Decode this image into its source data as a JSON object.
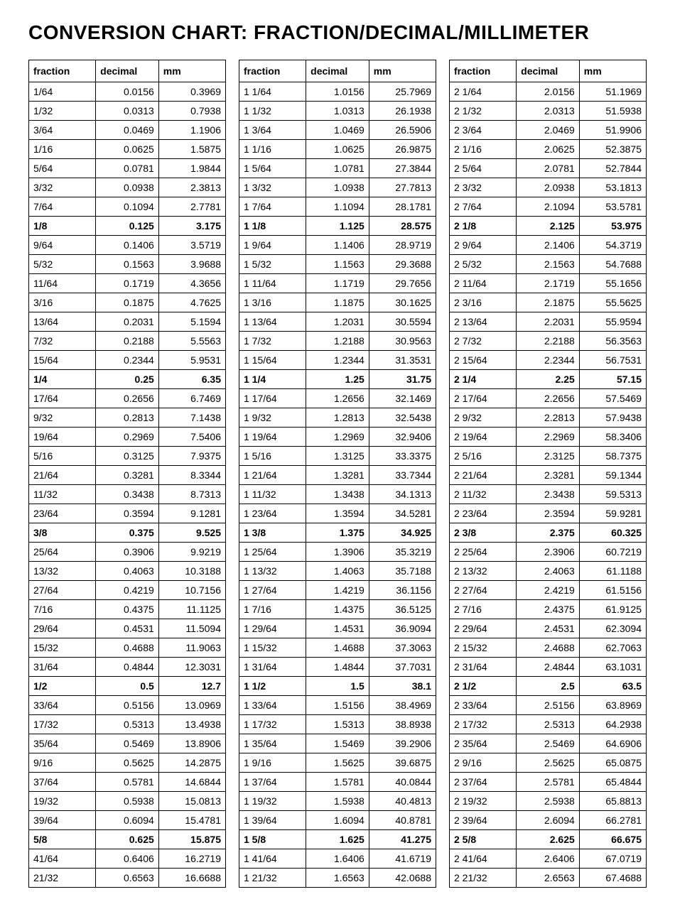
{
  "title": "CONVERSION CHART: FRACTION/DECIMAL/MILLIMETER",
  "headers": {
    "fraction": "fraction",
    "decimal": "decimal",
    "mm": "mm"
  },
  "bold_every": 8,
  "blocks": [
    {
      "rows": [
        {
          "f": "1/64",
          "d": "0.0156",
          "m": "0.3969"
        },
        {
          "f": "1/32",
          "d": "0.0313",
          "m": "0.7938"
        },
        {
          "f": "3/64",
          "d": "0.0469",
          "m": "1.1906"
        },
        {
          "f": "1/16",
          "d": "0.0625",
          "m": "1.5875"
        },
        {
          "f": "5/64",
          "d": "0.0781",
          "m": "1.9844"
        },
        {
          "f": "3/32",
          "d": "0.0938",
          "m": "2.3813"
        },
        {
          "f": "7/64",
          "d": "0.1094",
          "m": "2.7781"
        },
        {
          "f": "1/8",
          "d": "0.125",
          "m": "3.175"
        },
        {
          "f": "9/64",
          "d": "0.1406",
          "m": "3.5719"
        },
        {
          "f": "5/32",
          "d": "0.1563",
          "m": "3.9688"
        },
        {
          "f": "11/64",
          "d": "0.1719",
          "m": "4.3656"
        },
        {
          "f": "3/16",
          "d": "0.1875",
          "m": "4.7625"
        },
        {
          "f": "13/64",
          "d": "0.2031",
          "m": "5.1594"
        },
        {
          "f": "7/32",
          "d": "0.2188",
          "m": "5.5563"
        },
        {
          "f": "15/64",
          "d": "0.2344",
          "m": "5.9531"
        },
        {
          "f": "1/4",
          "d": "0.25",
          "m": "6.35"
        },
        {
          "f": "17/64",
          "d": "0.2656",
          "m": "6.7469"
        },
        {
          "f": "9/32",
          "d": "0.2813",
          "m": "7.1438"
        },
        {
          "f": "19/64",
          "d": "0.2969",
          "m": "7.5406"
        },
        {
          "f": "5/16",
          "d": "0.3125",
          "m": "7.9375"
        },
        {
          "f": "21/64",
          "d": "0.3281",
          "m": "8.3344"
        },
        {
          "f": "11/32",
          "d": "0.3438",
          "m": "8.7313"
        },
        {
          "f": "23/64",
          "d": "0.3594",
          "m": "9.1281"
        },
        {
          "f": "3/8",
          "d": "0.375",
          "m": "9.525"
        },
        {
          "f": "25/64",
          "d": "0.3906",
          "m": "9.9219"
        },
        {
          "f": "13/32",
          "d": "0.4063",
          "m": "10.3188"
        },
        {
          "f": "27/64",
          "d": "0.4219",
          "m": "10.7156"
        },
        {
          "f": "7/16",
          "d": "0.4375",
          "m": "11.1125"
        },
        {
          "f": "29/64",
          "d": "0.4531",
          "m": "11.5094"
        },
        {
          "f": "15/32",
          "d": "0.4688",
          "m": "11.9063"
        },
        {
          "f": "31/64",
          "d": "0.4844",
          "m": "12.3031"
        },
        {
          "f": "1/2",
          "d": "0.5",
          "m": "12.7"
        },
        {
          "f": "33/64",
          "d": "0.5156",
          "m": "13.0969"
        },
        {
          "f": "17/32",
          "d": "0.5313",
          "m": "13.4938"
        },
        {
          "f": "35/64",
          "d": "0.5469",
          "m": "13.8906"
        },
        {
          "f": "9/16",
          "d": "0.5625",
          "m": "14.2875"
        },
        {
          "f": "37/64",
          "d": "0.5781",
          "m": "14.6844"
        },
        {
          "f": "19/32",
          "d": "0.5938",
          "m": "15.0813"
        },
        {
          "f": "39/64",
          "d": "0.6094",
          "m": "15.4781"
        },
        {
          "f": "5/8",
          "d": "0.625",
          "m": "15.875"
        },
        {
          "f": "41/64",
          "d": "0.6406",
          "m": "16.2719"
        },
        {
          "f": "21/32",
          "d": "0.6563",
          "m": "16.6688"
        }
      ]
    },
    {
      "rows": [
        {
          "f": "1  1/64",
          "d": "1.0156",
          "m": "25.7969"
        },
        {
          "f": "1  1/32",
          "d": "1.0313",
          "m": "26.1938"
        },
        {
          "f": "1  3/64",
          "d": "1.0469",
          "m": "26.5906"
        },
        {
          "f": "1  1/16",
          "d": "1.0625",
          "m": "26.9875"
        },
        {
          "f": "1  5/64",
          "d": "1.0781",
          "m": "27.3844"
        },
        {
          "f": "1  3/32",
          "d": "1.0938",
          "m": "27.7813"
        },
        {
          "f": "1  7/64",
          "d": "1.1094",
          "m": "28.1781"
        },
        {
          "f": "1 1/8",
          "d": "1.125",
          "m": "28.575"
        },
        {
          "f": "1  9/64",
          "d": "1.1406",
          "m": "28.9719"
        },
        {
          "f": "1  5/32",
          "d": "1.1563",
          "m": "29.3688"
        },
        {
          "f": "1 11/64",
          "d": "1.1719",
          "m": "29.7656"
        },
        {
          "f": "1  3/16",
          "d": "1.1875",
          "m": "30.1625"
        },
        {
          "f": "1 13/64",
          "d": "1.2031",
          "m": "30.5594"
        },
        {
          "f": "1  7/32",
          "d": "1.2188",
          "m": "30.9563"
        },
        {
          "f": "1 15/64",
          "d": "1.2344",
          "m": "31.3531"
        },
        {
          "f": "1 1/4",
          "d": "1.25",
          "m": "31.75"
        },
        {
          "f": "1 17/64",
          "d": "1.2656",
          "m": "32.1469"
        },
        {
          "f": "1  9/32",
          "d": "1.2813",
          "m": "32.5438"
        },
        {
          "f": "1 19/64",
          "d": "1.2969",
          "m": "32.9406"
        },
        {
          "f": "1  5/16",
          "d": "1.3125",
          "m": "33.3375"
        },
        {
          "f": "1 21/64",
          "d": "1.3281",
          "m": "33.7344"
        },
        {
          "f": "1 11/32",
          "d": "1.3438",
          "m": "34.1313"
        },
        {
          "f": "1 23/64",
          "d": "1.3594",
          "m": "34.5281"
        },
        {
          "f": "1 3/8",
          "d": "1.375",
          "m": "34.925"
        },
        {
          "f": "1 25/64",
          "d": "1.3906",
          "m": "35.3219"
        },
        {
          "f": "1 13/32",
          "d": "1.4063",
          "m": "35.7188"
        },
        {
          "f": "1 27/64",
          "d": "1.4219",
          "m": "36.1156"
        },
        {
          "f": "1  7/16",
          "d": "1.4375",
          "m": "36.5125"
        },
        {
          "f": "1 29/64",
          "d": "1.4531",
          "m": "36.9094"
        },
        {
          "f": "1 15/32",
          "d": "1.4688",
          "m": "37.3063"
        },
        {
          "f": "1 31/64",
          "d": "1.4844",
          "m": "37.7031"
        },
        {
          "f": "1 1/2",
          "d": "1.5",
          "m": "38.1"
        },
        {
          "f": "1 33/64",
          "d": "1.5156",
          "m": "38.4969"
        },
        {
          "f": "1 17/32",
          "d": "1.5313",
          "m": "38.8938"
        },
        {
          "f": "1 35/64",
          "d": "1.5469",
          "m": "39.2906"
        },
        {
          "f": "1  9/16",
          "d": "1.5625",
          "m": "39.6875"
        },
        {
          "f": "1 37/64",
          "d": "1.5781",
          "m": "40.0844"
        },
        {
          "f": "1 19/32",
          "d": "1.5938",
          "m": "40.4813"
        },
        {
          "f": "1 39/64",
          "d": "1.6094",
          "m": "40.8781"
        },
        {
          "f": "1 5/8",
          "d": "1.625",
          "m": "41.275"
        },
        {
          "f": "1 41/64",
          "d": "1.6406",
          "m": "41.6719"
        },
        {
          "f": "1 21/32",
          "d": "1.6563",
          "m": "42.0688"
        }
      ]
    },
    {
      "rows": [
        {
          "f": "2  1/64",
          "d": "2.0156",
          "m": "51.1969"
        },
        {
          "f": "2  1/32",
          "d": "2.0313",
          "m": "51.5938"
        },
        {
          "f": "2  3/64",
          "d": "2.0469",
          "m": "51.9906"
        },
        {
          "f": "2  1/16",
          "d": "2.0625",
          "m": "52.3875"
        },
        {
          "f": "2  5/64",
          "d": "2.0781",
          "m": "52.7844"
        },
        {
          "f": "2  3/32",
          "d": "2.0938",
          "m": "53.1813"
        },
        {
          "f": "2  7/64",
          "d": "2.1094",
          "m": "53.5781"
        },
        {
          "f": "2 1/8",
          "d": "2.125",
          "m": "53.975"
        },
        {
          "f": "2  9/64",
          "d": "2.1406",
          "m": "54.3719"
        },
        {
          "f": "2  5/32",
          "d": "2.1563",
          "m": "54.7688"
        },
        {
          "f": "2 11/64",
          "d": "2.1719",
          "m": "55.1656"
        },
        {
          "f": "2  3/16",
          "d": "2.1875",
          "m": "55.5625"
        },
        {
          "f": "2 13/64",
          "d": "2.2031",
          "m": "55.9594"
        },
        {
          "f": "2  7/32",
          "d": "2.2188",
          "m": "56.3563"
        },
        {
          "f": "2 15/64",
          "d": "2.2344",
          "m": "56.7531"
        },
        {
          "f": "2 1/4",
          "d": "2.25",
          "m": "57.15"
        },
        {
          "f": "2 17/64",
          "d": "2.2656",
          "m": "57.5469"
        },
        {
          "f": "2  9/32",
          "d": "2.2813",
          "m": "57.9438"
        },
        {
          "f": "2 19/64",
          "d": "2.2969",
          "m": "58.3406"
        },
        {
          "f": "2  5/16",
          "d": "2.3125",
          "m": "58.7375"
        },
        {
          "f": "2 21/64",
          "d": "2.3281",
          "m": "59.1344"
        },
        {
          "f": "2 11/32",
          "d": "2.3438",
          "m": "59.5313"
        },
        {
          "f": "2 23/64",
          "d": "2.3594",
          "m": "59.9281"
        },
        {
          "f": "2 3/8",
          "d": "2.375",
          "m": "60.325"
        },
        {
          "f": "2 25/64",
          "d": "2.3906",
          "m": "60.7219"
        },
        {
          "f": "2 13/32",
          "d": "2.4063",
          "m": "61.1188"
        },
        {
          "f": "2 27/64",
          "d": "2.4219",
          "m": "61.5156"
        },
        {
          "f": "2  7/16",
          "d": "2.4375",
          "m": "61.9125"
        },
        {
          "f": "2 29/64",
          "d": "2.4531",
          "m": "62.3094"
        },
        {
          "f": "2 15/32",
          "d": "2.4688",
          "m": "62.7063"
        },
        {
          "f": "2 31/64",
          "d": "2.4844",
          "m": "63.1031"
        },
        {
          "f": "2 1/2",
          "d": "2.5",
          "m": "63.5"
        },
        {
          "f": "2 33/64",
          "d": "2.5156",
          "m": "63.8969"
        },
        {
          "f": "2 17/32",
          "d": "2.5313",
          "m": "64.2938"
        },
        {
          "f": "2 35/64",
          "d": "2.5469",
          "m": "64.6906"
        },
        {
          "f": "2  9/16",
          "d": "2.5625",
          "m": "65.0875"
        },
        {
          "f": "2 37/64",
          "d": "2.5781",
          "m": "65.4844"
        },
        {
          "f": "2 19/32",
          "d": "2.5938",
          "m": "65.8813"
        },
        {
          "f": "2 39/64",
          "d": "2.6094",
          "m": "66.2781"
        },
        {
          "f": "2 5/8",
          "d": "2.625",
          "m": "66.675"
        },
        {
          "f": "2 41/64",
          "d": "2.6406",
          "m": "67.0719"
        },
        {
          "f": "2 21/32",
          "d": "2.6563",
          "m": "67.4688"
        }
      ]
    }
  ]
}
